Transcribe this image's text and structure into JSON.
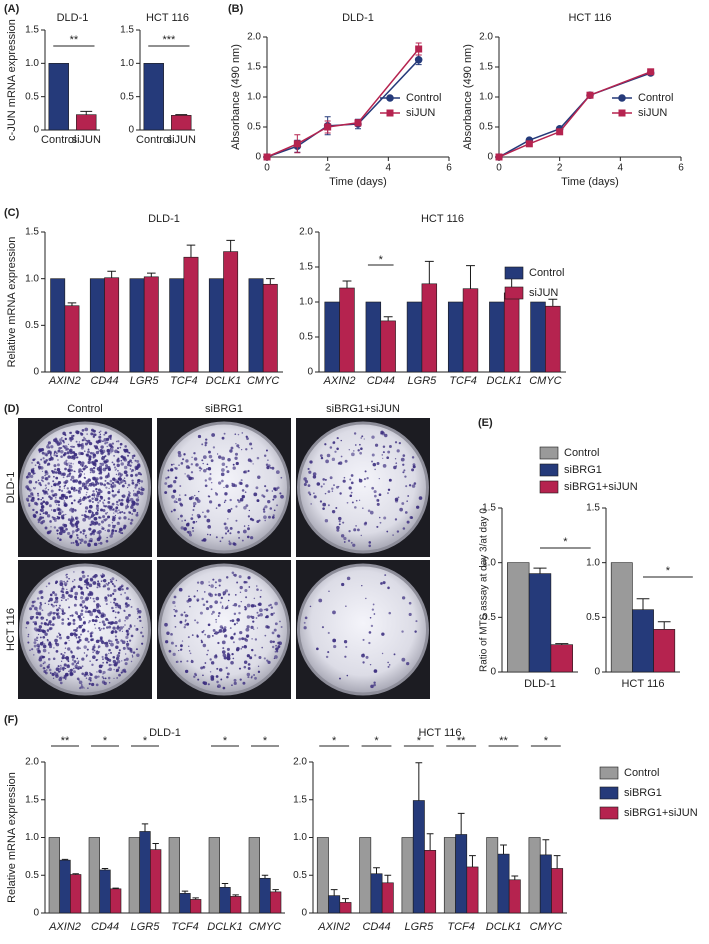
{
  "figure": {
    "panel_labels": [
      "(A)",
      "(B)",
      "(C)",
      "(D)",
      "(E)",
      "(F)"
    ],
    "image_panel": {
      "columns": [
        "Control",
        "siBRG1",
        "siBRG1+siJUN"
      ],
      "rows": [
        "DLD-1",
        "HCT 116"
      ]
    }
  },
  "chart_data": [
    {
      "type": "bar",
      "title": "DLD-1",
      "ylabel": "c-JUN mRNA expression",
      "categories": [
        "Control",
        "siJUN"
      ],
      "values": [
        1,
        0.23
      ],
      "errors": [
        0,
        0.05
      ],
      "colors": [
        "#253a7a",
        "#b5234f"
      ],
      "ylim": [
        0,
        1.5
      ],
      "yticks": [
        0,
        0.5,
        {
          "value": 1,
          "label": "1.0"
        },
        1.5
      ],
      "significance": "**"
    },
    {
      "type": "bar",
      "title": "HCT 116",
      "categories": [
        "Control",
        "siJUN"
      ],
      "values": [
        1,
        0.22
      ],
      "errors": [
        0,
        0.01
      ],
      "colors": [
        "#253a7a",
        "#b5234f"
      ],
      "ylim": [
        0,
        1.5
      ],
      "yticks": [
        0,
        0.5,
        {
          "value": 1,
          "label": "1.0"
        },
        1.5
      ],
      "significance": "***"
    },
    {
      "type": "line",
      "title": "DLD-1",
      "xlabel": "Time (days)",
      "ylabel": "Absorbance (490 nm)",
      "x": [
        0,
        1,
        2,
        3,
        5
      ],
      "xlim": [
        0,
        6
      ],
      "xticks": [
        0,
        2,
        4,
        6
      ],
      "ylim": [
        0,
        2
      ],
      "yticks": [
        0,
        0.5,
        {
          "value": 1,
          "label": "1.0"
        },
        1.5,
        {
          "value": 2,
          "label": "2.0"
        }
      ],
      "legend": "right",
      "series": [
        {
          "name": "Control",
          "color": "#253a7a",
          "marker": "circle",
          "values": [
            0,
            0.18,
            0.52,
            0.55,
            1.62
          ],
          "errors": [
            0,
            0.1,
            0.15,
            0.08,
            0.08
          ]
        },
        {
          "name": "siJUN",
          "color": "#b5234f",
          "marker": "square",
          "values": [
            0,
            0.22,
            0.5,
            0.57,
            1.8
          ],
          "errors": [
            0,
            0.15,
            0.1,
            0.05,
            0.1
          ]
        }
      ]
    },
    {
      "type": "line",
      "title": "HCT 116",
      "xlabel": "Time (days)",
      "ylabel": "Absorbance (490 nm)",
      "x": [
        0,
        1,
        2,
        3,
        5
      ],
      "xlim": [
        0,
        6
      ],
      "xticks": [
        0,
        2,
        4,
        6
      ],
      "ylim": [
        0,
        2
      ],
      "yticks": [
        0,
        0.5,
        {
          "value": 1,
          "label": "1.0"
        },
        1.5,
        {
          "value": 2,
          "label": "2.0"
        }
      ],
      "legend": "right",
      "series": [
        {
          "name": "Control",
          "color": "#253a7a",
          "marker": "circle",
          "values": [
            0,
            0.28,
            0.47,
            1.03,
            1.4
          ],
          "errors": [
            0,
            0.02,
            0.02,
            0.02,
            0.02
          ]
        },
        {
          "name": "siJUN",
          "color": "#b5234f",
          "marker": "square",
          "values": [
            0,
            0.22,
            0.42,
            1.03,
            1.42
          ],
          "errors": [
            0,
            0.02,
            0.02,
            0.02,
            0.03
          ]
        }
      ]
    },
    {
      "type": "bar",
      "title": "DLD-1",
      "ylabel": "Relative mRNA expression",
      "categories": [
        "AXIN2",
        "CD44",
        "LGR5",
        "TCF4",
        "DCLK1",
        "CMYC"
      ],
      "ylim": [
        0,
        1.5
      ],
      "yticks": [
        0,
        0.5,
        {
          "value": 1,
          "label": "1.0"
        },
        1.5
      ],
      "series": [
        {
          "color": "#253a7a",
          "values": [
            1,
            1,
            1,
            1,
            1,
            1
          ]
        },
        {
          "color": "#b5234f",
          "values": [
            0.71,
            1.01,
            1.02,
            1.23,
            1.29,
            0.94
          ],
          "errors": [
            0.03,
            0.07,
            0.04,
            0.13,
            0.12,
            0.06
          ]
        }
      ]
    },
    {
      "type": "bar",
      "title": "HCT 116",
      "categories": [
        "AXIN2",
        "CD44",
        "LGR5",
        "TCF4",
        "DCLK1",
        "CMYC"
      ],
      "ylim": [
        0,
        2
      ],
      "yticks": [
        0,
        0.5,
        {
          "value": 1,
          "label": "1.0"
        },
        1.5,
        {
          "value": 2,
          "label": "2.0"
        }
      ],
      "legend": "right",
      "significance": [
        null,
        "*",
        null,
        null,
        null,
        null
      ],
      "series": [
        {
          "name": "Control",
          "color": "#253a7a",
          "values": [
            1,
            1,
            1,
            1,
            1,
            1
          ]
        },
        {
          "name": "siJUN",
          "color": "#b5234f",
          "values": [
            1.2,
            0.73,
            1.26,
            1.19,
            1.13,
            0.94
          ],
          "errors": [
            0.1,
            0.06,
            0.32,
            0.33,
            0.25,
            0.1
          ]
        }
      ]
    },
    {
      "type": "bar",
      "ylabel": "Ratio of MTS assay at day 3/at day 0",
      "categories": [
        "DLD-1"
      ],
      "ylim": [
        0,
        1.5
      ],
      "yticks": [
        0,
        0.5,
        {
          "value": 1,
          "label": "1.0"
        },
        1.5
      ],
      "legend": "top",
      "significance": "*",
      "series": [
        {
          "name": "Control",
          "color": "#9a9a9a",
          "values": [
            1
          ]
        },
        {
          "name": "siBRG1",
          "color": "#253a7a",
          "values": [
            0.9
          ],
          "errors": [
            0.05
          ]
        },
        {
          "name": "siBRG1+siJUN",
          "color": "#b5234f",
          "values": [
            0.25
          ],
          "errors": [
            0.01
          ]
        }
      ]
    },
    {
      "type": "bar",
      "categories": [
        "HCT 116"
      ],
      "ylim": [
        0,
        1.5
      ],
      "yticks": [
        0,
        0.5,
        {
          "value": 1,
          "label": "1.0"
        },
        1.5
      ],
      "significance": "*",
      "series": [
        {
          "color": "#9a9a9a",
          "values": [
            1
          ]
        },
        {
          "color": "#253a7a",
          "values": [
            0.57
          ],
          "errors": [
            0.1
          ]
        },
        {
          "color": "#b5234f",
          "values": [
            0.39
          ],
          "errors": [
            0.07
          ]
        }
      ]
    },
    {
      "type": "bar",
      "title": "DLD-1",
      "ylabel": "Relative mRNA expression",
      "categories": [
        "AXIN2",
        "CD44",
        "LGR5",
        "TCF4",
        "DCLK1",
        "CMYC"
      ],
      "ylim": [
        0,
        2
      ],
      "yticks": [
        0,
        0.5,
        {
          "value": 1,
          "label": "1.0"
        },
        1.5,
        {
          "value": 2,
          "label": "2.0"
        }
      ],
      "significance": [
        "**",
        "*",
        "*",
        null,
        "*",
        "*"
      ],
      "series": [
        {
          "color": "#9a9a9a",
          "values": [
            1,
            1,
            1,
            1,
            1,
            1
          ]
        },
        {
          "color": "#253a7a",
          "values": [
            0.7,
            0.57,
            1.08,
            0.26,
            0.34,
            0.46
          ],
          "errors": [
            0.01,
            0.02,
            0.1,
            0.03,
            0.05,
            0.04
          ]
        },
        {
          "color": "#b5234f",
          "values": [
            0.51,
            0.32,
            0.84,
            0.18,
            0.22,
            0.28
          ],
          "errors": [
            0.01,
            0.01,
            0.08,
            0.02,
            0.02,
            0.03
          ]
        }
      ]
    },
    {
      "type": "bar",
      "title": "HCT 116",
      "categories": [
        "AXIN2",
        "CD44",
        "LGR5",
        "TCF4",
        "DCLK1",
        "CMYC"
      ],
      "ylim": [
        0,
        2
      ],
      "yticks": [
        0,
        0.5,
        {
          "value": 1,
          "label": "1.0"
        },
        1.5,
        {
          "value": 2,
          "label": "2.0"
        }
      ],
      "legend": "right",
      "significance": [
        "*",
        "*",
        "*",
        "**",
        "**",
        "*"
      ],
      "series": [
        {
          "name": "Control",
          "color": "#9a9a9a",
          "values": [
            1,
            1,
            1,
            1,
            1,
            1
          ]
        },
        {
          "name": "siBRG1",
          "color": "#253a7a",
          "values": [
            0.23,
            0.52,
            1.49,
            1.04,
            0.78,
            0.77
          ],
          "errors": [
            0.08,
            0.08,
            0.5,
            0.28,
            0.12,
            0.2
          ]
        },
        {
          "name": "siBRG1+siJUN",
          "color": "#b5234f",
          "values": [
            0.14,
            0.4,
            0.83,
            0.61,
            0.44,
            0.59
          ],
          "errors": [
            0.05,
            0.1,
            0.22,
            0.15,
            0.05,
            0.17
          ]
        }
      ]
    }
  ]
}
